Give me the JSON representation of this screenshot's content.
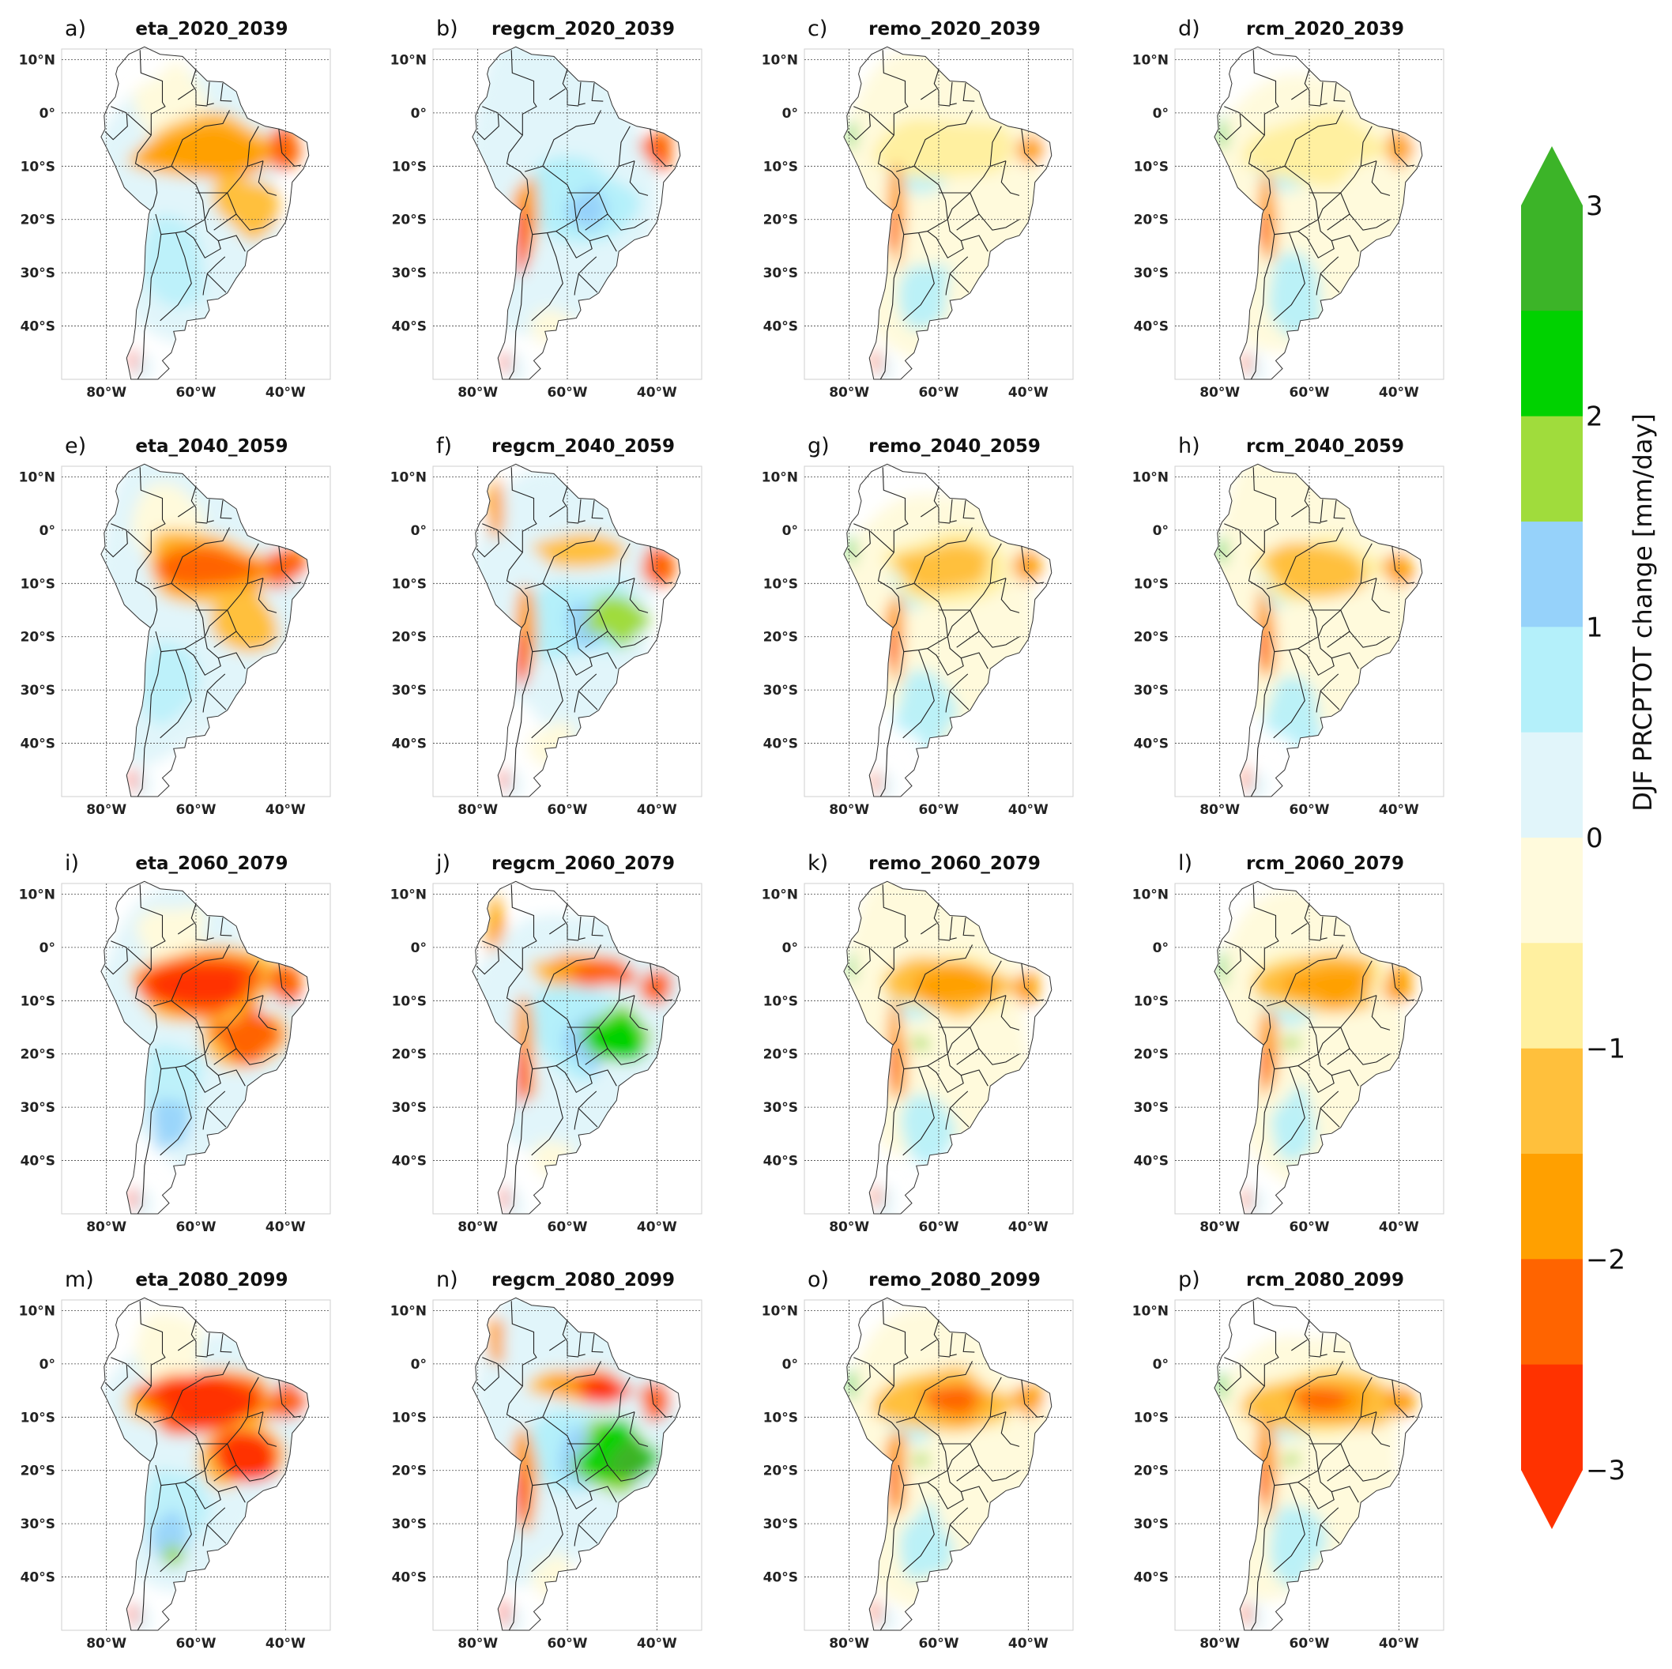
{
  "figure": {
    "panels": [
      {
        "letter": "a)",
        "title": "eta_2020_2039",
        "model": "eta",
        "period": "2020_2039"
      },
      {
        "letter": "b)",
        "title": "regcm_2020_2039",
        "model": "regcm",
        "period": "2020_2039"
      },
      {
        "letter": "c)",
        "title": "remo_2020_2039",
        "model": "remo",
        "period": "2020_2039"
      },
      {
        "letter": "d)",
        "title": "rcm_2020_2039",
        "model": "rcm",
        "period": "2020_2039"
      },
      {
        "letter": "e)",
        "title": "eta_2040_2059",
        "model": "eta",
        "period": "2040_2059"
      },
      {
        "letter": "f)",
        "title": "regcm_2040_2059",
        "model": "regcm",
        "period": "2040_2059"
      },
      {
        "letter": "g)",
        "title": "remo_2040_2059",
        "model": "remo",
        "period": "2040_2059"
      },
      {
        "letter": "h)",
        "title": "rcm_2040_2059",
        "model": "rcm",
        "period": "2040_2059"
      },
      {
        "letter": "i)",
        "title": "eta_2060_2079",
        "model": "eta",
        "period": "2060_2079"
      },
      {
        "letter": "j)",
        "title": "regcm_2060_2079",
        "model": "regcm",
        "period": "2060_2079"
      },
      {
        "letter": "k)",
        "title": "remo_2060_2079",
        "model": "remo",
        "period": "2060_2079"
      },
      {
        "letter": "l)",
        "title": "rcm_2060_2079",
        "model": "rcm",
        "period": "2060_2079"
      },
      {
        "letter": "m)",
        "title": "eta_2080_2099",
        "model": "eta",
        "period": "2080_2099"
      },
      {
        "letter": "n)",
        "title": "regcm_2080_2099",
        "model": "regcm",
        "period": "2080_2099"
      },
      {
        "letter": "o)",
        "title": "remo_2080_2099",
        "model": "remo",
        "period": "2080_2099"
      },
      {
        "letter": "p)",
        "title": "rcm_2080_2099",
        "model": "rcm",
        "period": "2080_2099"
      }
    ],
    "lat_tick_labels": [
      "10°N",
      "0°",
      "10°S",
      "20°S",
      "30°S",
      "40°S"
    ],
    "lon_tick_labels": [
      "80°W",
      "60°W",
      "40°W"
    ]
  },
  "colorbar": {
    "label": "DJF PRCPTOT change [mm/day]",
    "tick_labels": [
      "3",
      "2",
      "1",
      "0",
      "−1",
      "−2",
      "−3"
    ],
    "min": -3,
    "max": 3,
    "colors_top_to_bottom": [
      "#3cb428",
      "#00d200",
      "#a0dc3c",
      "#96d2fa",
      "#b4f0fa",
      "#e1f5fa",
      "#fffadc",
      "#fff0a0",
      "#ffc03c",
      "#ffa000",
      "#ff6400",
      "#ff3200"
    ]
  },
  "chart_data": {
    "type": "heatmap",
    "title": "",
    "colorbar_label": "DJF PRCPTOT change [mm/day]",
    "colorbar_range": [
      -3,
      3
    ],
    "colorbar_ticks": [
      3,
      2,
      1,
      0,
      -1,
      -2,
      -3
    ],
    "lat_ticks": [
      "10°N",
      "0°",
      "10°S",
      "20°S",
      "30°S",
      "40°S"
    ],
    "lon_ticks": [
      "80°W",
      "60°W",
      "40°W"
    ],
    "panel_titles": [
      "eta_2020_2039",
      "regcm_2020_2039",
      "remo_2020_2039",
      "rcm_2020_2039",
      "eta_2040_2059",
      "regcm_2040_2059",
      "remo_2040_2059",
      "rcm_2040_2059",
      "eta_2060_2079",
      "regcm_2060_2079",
      "remo_2060_2079",
      "rcm_2060_2079",
      "eta_2080_2099",
      "regcm_2080_2099",
      "remo_2080_2099",
      "rcm_2080_2099"
    ]
  }
}
